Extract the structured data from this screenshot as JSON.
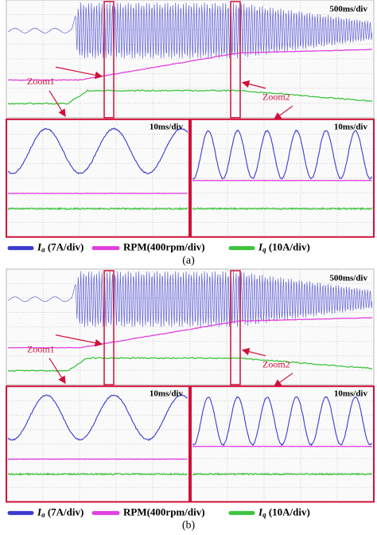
{
  "panels": [
    {
      "main_scale": "500ms/div",
      "zoom1": "Zoom1",
      "zoom2": "Zoom2",
      "zoom_left_scale": "10ms/div",
      "zoom_right_scale": "10ms/div",
      "legend": [
        {
          "symbol": "I",
          "sub": "a",
          "text": " (7A/div)"
        },
        {
          "text": "RPM(400rpm/div)"
        },
        {
          "symbol": "I",
          "sub": "q",
          "text": " (10A/div)"
        }
      ],
      "caption": "(a)"
    },
    {
      "main_scale": "500ms/div",
      "zoom1": "Zoom1",
      "zoom2": "Zoom2",
      "zoom_left_scale": "10ms/div",
      "zoom_right_scale": "10ms/div",
      "legend": [
        {
          "symbol": "I",
          "sub": "a",
          "text": " (7A/div)"
        },
        {
          "text": "RPM(400rpm/div)"
        },
        {
          "symbol": "I",
          "sub": "q",
          "text": " (10A/div)"
        }
      ],
      "caption": "(b)"
    }
  ]
}
